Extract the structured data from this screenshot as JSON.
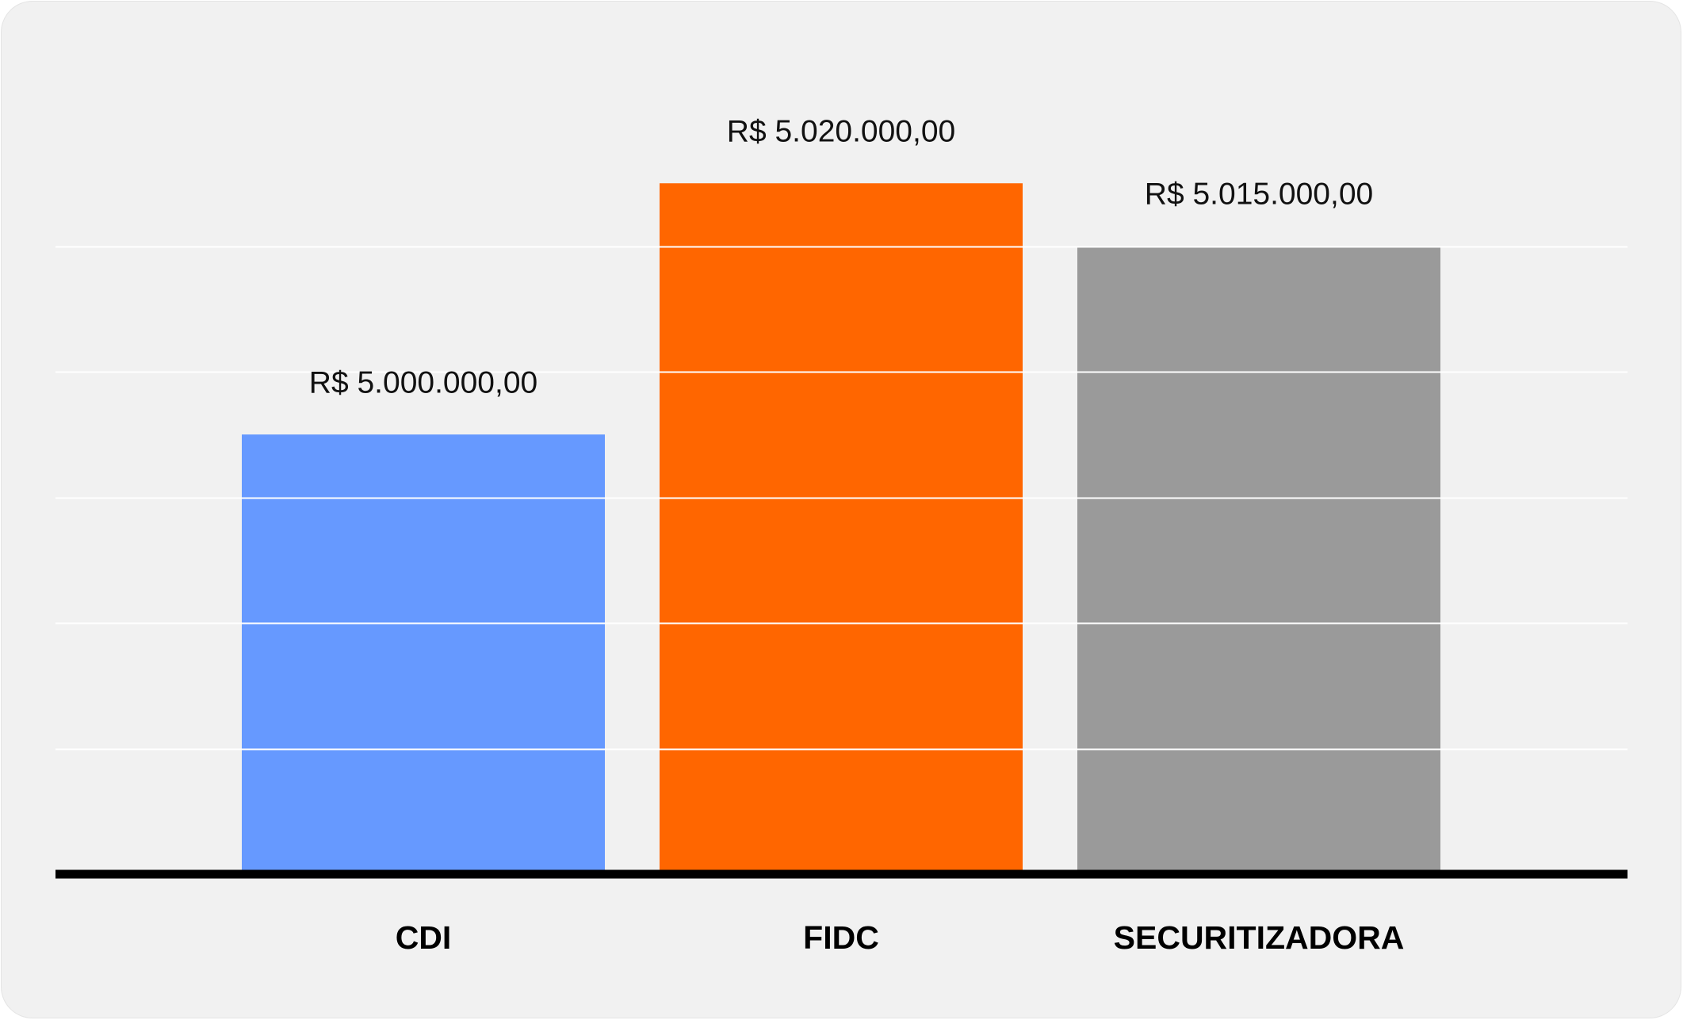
{
  "chart_data": {
    "type": "bar",
    "categories": [
      "CDI",
      "FIDC",
      "SECURITIZADORA"
    ],
    "values": [
      5000000,
      5020000,
      5015000
    ],
    "value_labels": [
      "R$ 5.000.000,00",
      "R$ 5.020.000,00",
      "R$ 5.015.000,00"
    ],
    "colors": [
      "#6699ff",
      "#ff6600",
      "#9a9a9a"
    ],
    "title": "",
    "xlabel": "",
    "ylabel": "",
    "ylim": [
      4965000,
      5025000
    ],
    "grid": true,
    "gridlines": [
      4975000,
      4985000,
      4995000,
      5005000,
      5015000
    ],
    "grid_color": "#ffffff",
    "axis_color": "#000000",
    "background": "#f1f1f1"
  }
}
